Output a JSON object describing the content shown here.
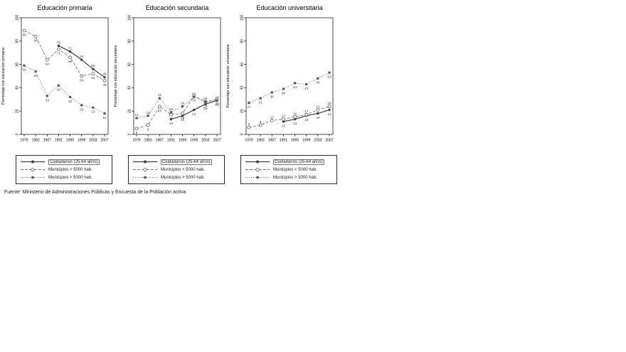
{
  "source_note": "Fuente: Ministerio de Administraciones Públicas y Encuesta de la Población activa",
  "colors": {
    "axis": "#000000",
    "solid": "#3d3d3d",
    "dashed": "#707070",
    "dotted": "#575757",
    "label": "#3d3d3d",
    "background": "#ffffff"
  },
  "legend": {
    "items": [
      {
        "label": "Ciudadanos (25-64 años)",
        "style": "solid",
        "marker": "filled-circle",
        "boxed": true
      },
      {
        "label": "Municipios < 5000 hab.",
        "style": "dashed",
        "marker": "open-circle",
        "boxed": false
      },
      {
        "label": "Municipios > 5000 hab.",
        "style": "dotted",
        "marker": "filled-square",
        "boxed": false
      }
    ]
  },
  "chart_data": [
    {
      "type": "line",
      "title": "Educación primaria",
      "ylabel": "Porcentaje con educación primaria",
      "ylim": [
        0,
        100
      ],
      "yticks": [
        0,
        20,
        40,
        60,
        80,
        100
      ],
      "xticks": [
        1979,
        1983,
        1987,
        1991,
        1995,
        1999,
        2003,
        2007
      ],
      "grid": false,
      "legend_position": "below",
      "series": [
        {
          "name": "Ciudadanos (25-64 años)",
          "style": "solid",
          "marker": "filled-circle",
          "label_side": "above",
          "x": [
            1991,
            1995,
            1999,
            2003,
            2007
          ],
          "values": [
            76,
            71,
            64,
            56,
            49
          ]
        },
        {
          "name": "Municipios < 5000 hab.",
          "style": "dashed",
          "marker": "open-circle",
          "label_side": "below",
          "x": [
            1979,
            1983,
            1987,
            1991,
            1995,
            1999,
            2003,
            2007
          ],
          "values": [
            89,
            84,
            64,
            73,
            66,
            50,
            52,
            46
          ]
        },
        {
          "name": "Municipios > 5000 hab.",
          "style": "dotted",
          "marker": "filled-square",
          "label_side": "below",
          "x": [
            1979,
            1983,
            1987,
            1991,
            1995,
            1999,
            2003,
            2007
          ],
          "values": [
            59,
            54,
            33,
            42,
            32,
            25,
            23,
            18
          ]
        }
      ]
    },
    {
      "type": "line",
      "title": "Educación secundaria",
      "ylabel": "Porcentaje con educación secundaria",
      "ylim": [
        0,
        100
      ],
      "yticks": [
        0,
        20,
        40,
        60,
        80,
        100
      ],
      "xticks": [
        1979,
        1983,
        1987,
        1991,
        1995,
        1999,
        2003,
        2007
      ],
      "grid": false,
      "legend_position": "below",
      "series": [
        {
          "name": "Ciudadanos (25-64 años)",
          "style": "solid",
          "marker": "filled-circle",
          "label_side": "below",
          "x": [
            1991,
            1995,
            1999,
            2003,
            2007
          ],
          "values": [
            13,
            16,
            21,
            26,
            29
          ]
        },
        {
          "name": "Municipios < 5000 hab.",
          "style": "dashed",
          "marker": "open-circle",
          "label_side": "below",
          "x": [
            1979,
            1983,
            1987,
            1991,
            1995,
            1999,
            2003,
            2007
          ],
          "values": [
            5,
            8,
            24,
            17,
            18,
            33,
            28,
            30
          ]
        },
        {
          "name": "Municipios > 5000 hab.",
          "style": "dotted",
          "marker": "filled-square",
          "label_side": "above",
          "x": [
            1979,
            1983,
            1987,
            1991,
            1995,
            1999,
            2003,
            2007
          ],
          "values": [
            14,
            16,
            31,
            19,
            24,
            32,
            28,
            29
          ]
        }
      ]
    },
    {
      "type": "line",
      "title": "Educación universitaria",
      "ylabel": "Porcentaje con educación universitaria",
      "ylim": [
        0,
        100
      ],
      "yticks": [
        0,
        20,
        40,
        60,
        80,
        100
      ],
      "xticks": [
        1979,
        1983,
        1987,
        1991,
        1995,
        1999,
        2003,
        2007
      ],
      "grid": false,
      "legend_position": "below",
      "series": [
        {
          "name": "Ciudadanos (25-64 años)",
          "style": "solid",
          "marker": "filled-circle",
          "label_side": "below",
          "x": [
            1991,
            1995,
            1999,
            2003,
            2007
          ],
          "values": [
            11,
            13,
            16,
            18,
            21
          ]
        },
        {
          "name": "Municipios < 5000 hab.",
          "style": "dashed",
          "marker": "open-circle",
          "label_side": "above",
          "x": [
            1979,
            1983,
            1987,
            1991,
            1995,
            1999,
            2003,
            2007
          ],
          "values": [
            6,
            8,
            12,
            13,
            15,
            17,
            21,
            24
          ]
        },
        {
          "name": "Municipios > 5000 hab.",
          "style": "dotted",
          "marker": "filled-square",
          "label_side": "below",
          "x": [
            1979,
            1983,
            1987,
            1991,
            1995,
            1999,
            2003,
            2007
          ],
          "values": [
            27,
            31,
            36,
            39,
            44,
            43,
            48,
            53
          ]
        }
      ]
    }
  ]
}
